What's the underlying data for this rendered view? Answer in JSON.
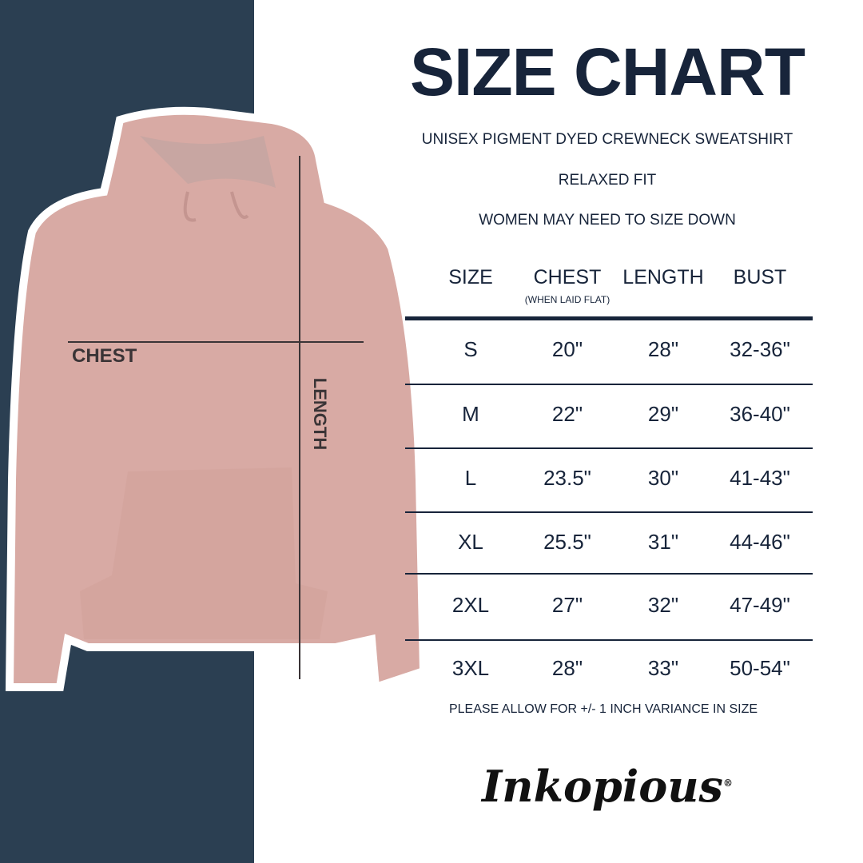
{
  "title": "SIZE CHART",
  "subtitle_lines": [
    "UNISEX PIGMENT DYED CREWNECK SWEATSHIRT",
    "RELAXED FIT",
    "WOMEN MAY NEED TO SIZE DOWN"
  ],
  "garment_labels": {
    "chest": "CHEST",
    "length": "LENGTH"
  },
  "table": {
    "headers": [
      "SIZE",
      "CHEST",
      "LENGTH",
      "BUST"
    ],
    "chest_note": "(WHEN LAID FLAT)",
    "rows": [
      [
        "S",
        "20\"",
        "28\"",
        "32-36\""
      ],
      [
        "M",
        "22\"",
        "29\"",
        "36-40\""
      ],
      [
        "L",
        "23.5\"",
        "30\"",
        "41-43\""
      ],
      [
        "XL",
        "25.5\"",
        "31\"",
        "44-46\""
      ],
      [
        "2XL",
        "27\"",
        "32\"",
        "47-49\""
      ],
      [
        "3XL",
        "28\"",
        "33\"",
        "50-54\""
      ]
    ]
  },
  "footer_note": "PLEASE ALLOW FOR +/- 1 INCH VARIANCE IN SIZE",
  "brand": "Inkopious",
  "colors": {
    "navy_panel": "#2b3f52",
    "text": "#17243a",
    "hoodie": "#d8aaa4"
  }
}
